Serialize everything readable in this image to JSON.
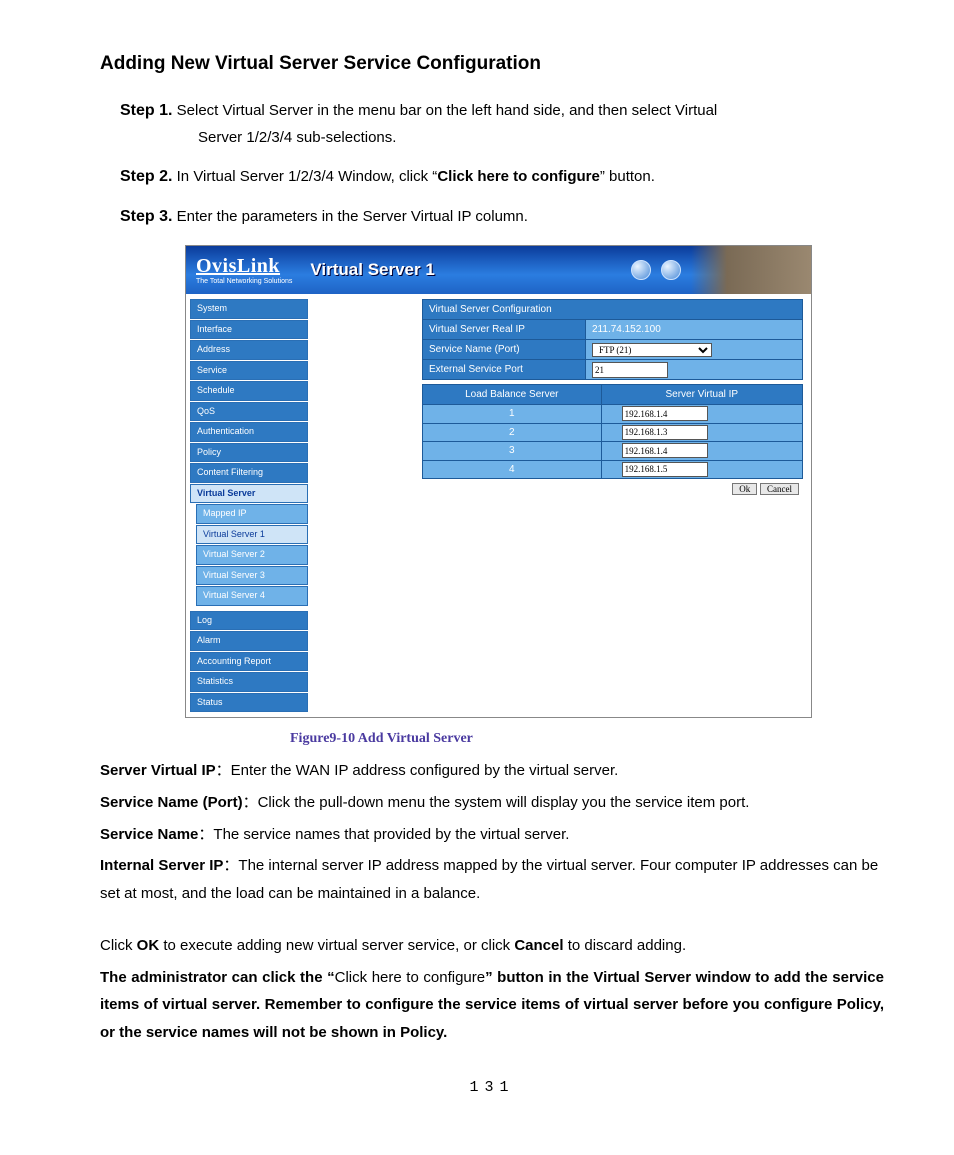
{
  "title": "Adding New Virtual Server Service Configuration",
  "steps": {
    "s1": {
      "label": "Step 1.",
      "text_a": "Select Virtual Server in the menu bar on the left hand side, and then select Virtual",
      "text_b": "Server 1/2/3/4 sub-selections."
    },
    "s2": {
      "label": "Step 2.",
      "prefix": "In Virtual Server 1/2/3/4 Window, click “",
      "bold": "Click here to configure",
      "suffix": "” button."
    },
    "s3": {
      "label": "Step 3.",
      "text": "Enter the parameters in the Server Virtual IP column."
    }
  },
  "screenshot": {
    "brand": "OvisLink",
    "tagline": "The Total Networking Solutions",
    "page_title": "Virtual Server 1",
    "nav": {
      "top": [
        "System",
        "Interface",
        "Address",
        "Service",
        "Schedule",
        "QoS",
        "Authentication",
        "Policy",
        "Content Filtering"
      ],
      "active": "Virtual Server",
      "subs": [
        "Mapped IP",
        "Virtual Server 1",
        "Virtual Server 2",
        "Virtual Server 3",
        "Virtual Server 4"
      ],
      "sub_active_index": 1,
      "bottom": [
        "Log",
        "Alarm",
        "Accounting Report",
        "Statistics",
        "Status"
      ]
    },
    "config": {
      "heading": "Virtual Server Configuration",
      "rows": {
        "real_ip": {
          "label": "Virtual Server Real IP",
          "value": "211.74.152.100"
        },
        "service": {
          "label": "Service Name (Port)",
          "value": "FTP (21)"
        },
        "ext_port": {
          "label": "External Service Port",
          "value": "21"
        }
      },
      "lb_headers": [
        "Load Balance Server",
        "Server Virtual IP"
      ],
      "lb_rows": [
        {
          "n": "1",
          "ip": "192.168.1.4"
        },
        {
          "n": "2",
          "ip": "192.168.1.3"
        },
        {
          "n": "3",
          "ip": "192.168.1.4"
        },
        {
          "n": "4",
          "ip": "192.168.1.5"
        }
      ],
      "ok": "Ok",
      "cancel": "Cancel"
    }
  },
  "figure_caption": "Figure9-10 Add Virtual Server",
  "defs": {
    "d1": {
      "term": "Server Virtual IP",
      "sep": "：",
      "text": "Enter the WAN IP address configured by the virtual server."
    },
    "d2": {
      "term": "Service Name (Port)",
      "sep": "：",
      "text": "Click the pull-down menu the system will display you the service item port."
    },
    "d3": {
      "term": "Service Name",
      "sep": "：",
      "text": "The service names that provided by the virtual server."
    },
    "d4": {
      "term": "Internal Server IP",
      "sep": "：",
      "text": "The internal server IP address mapped by the virtual server. Four computer IP addresses can be set at most, and the load can be maintained in a balance."
    }
  },
  "closing": {
    "p1_a": "Click ",
    "p1_b": "OK",
    "p1_c": " to execute adding new virtual server service, or click ",
    "p1_d": "Cancel",
    "p1_e": " to discard adding.",
    "p2_a": "The administrator can click the “",
    "p2_b": "Click here to configure",
    "p2_c": "” button in the Virtual Server window to add the service items of virtual server. Remember to configure the service items of virtual server before you configure Policy, or the service names will not be shown in Policy."
  },
  "page_number": "131"
}
